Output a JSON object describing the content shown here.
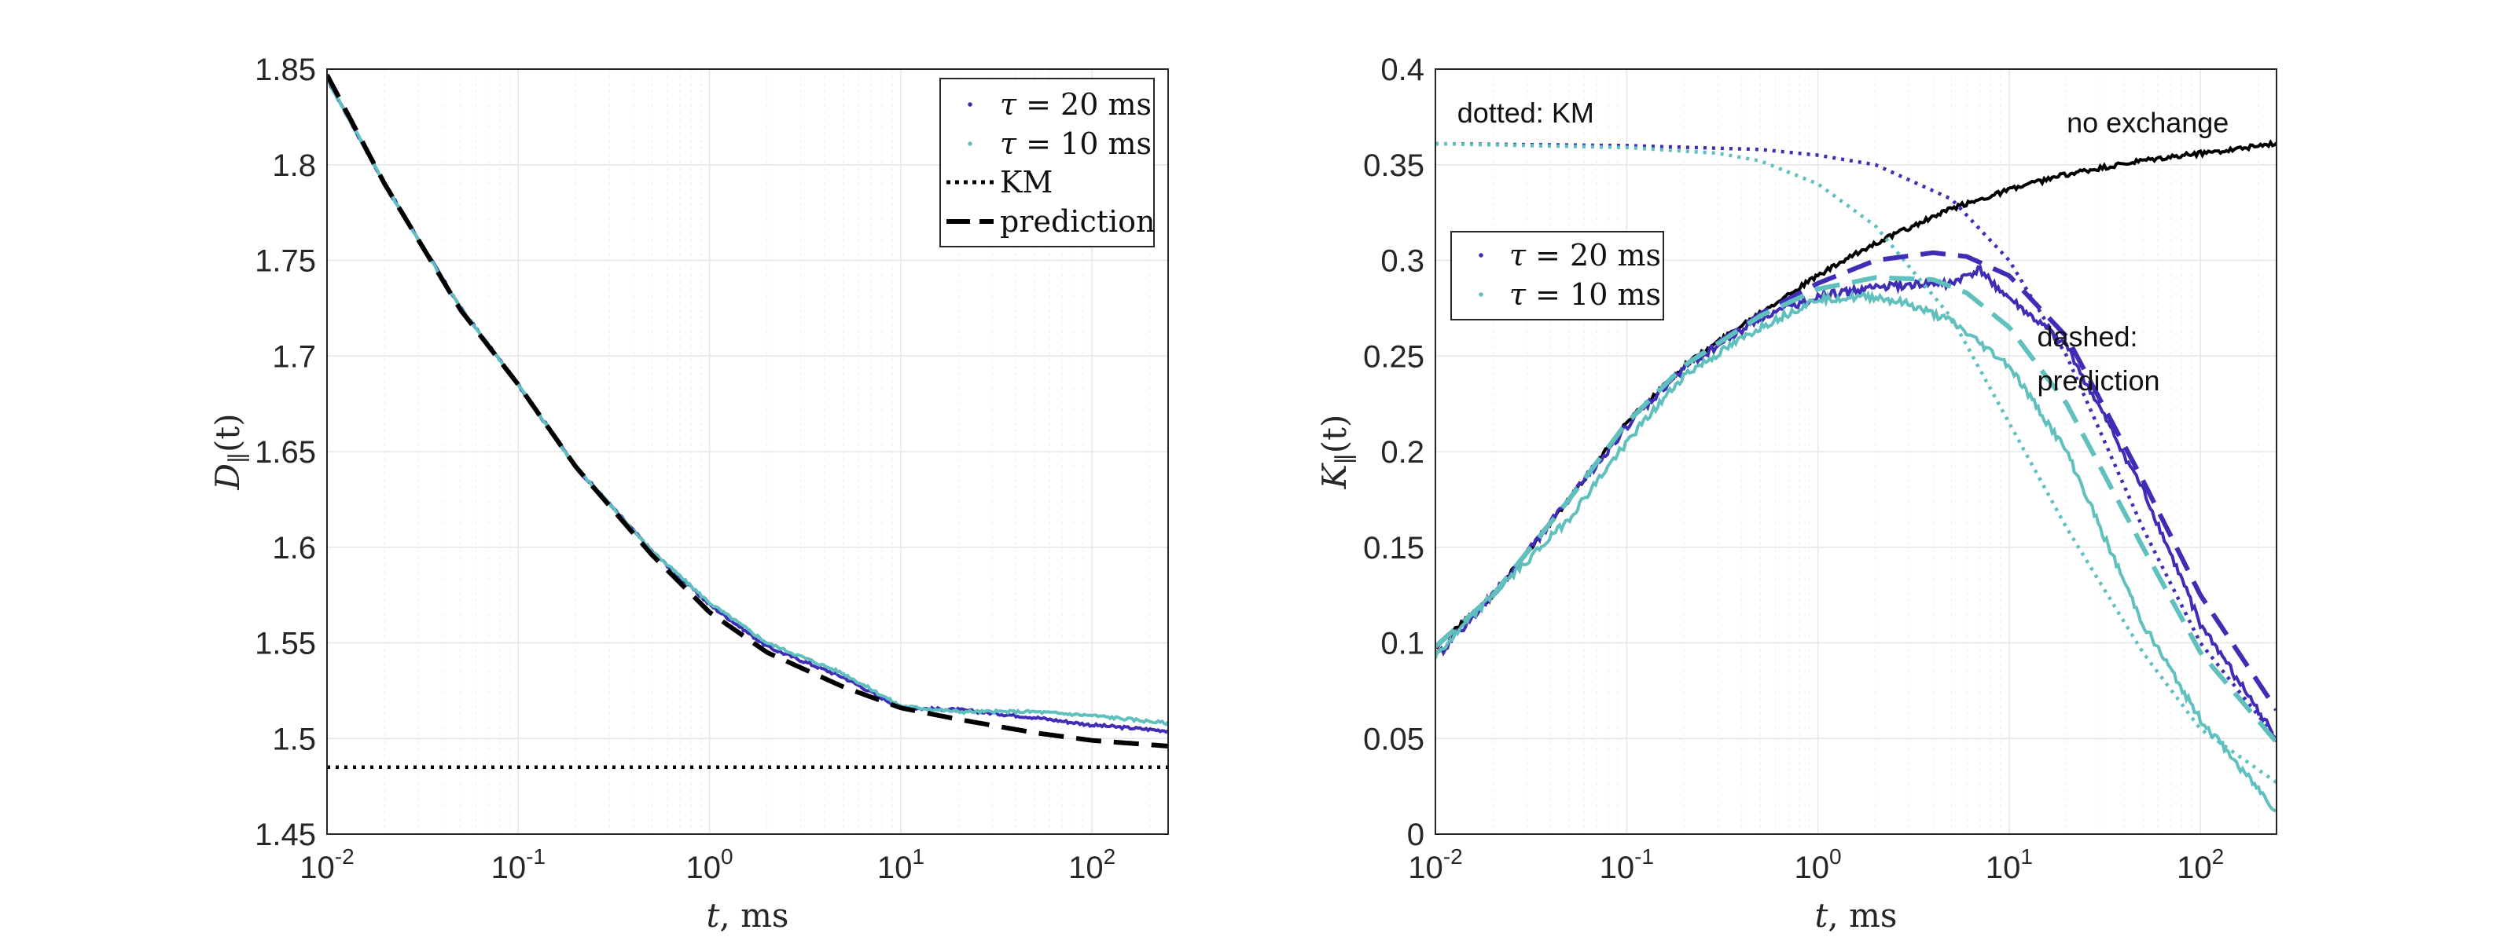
{
  "colors": {
    "tau20": "#3f2db5",
    "tau10": "#5fc0bd",
    "black": "#000000",
    "axis": "#262626"
  },
  "chart_data": [
    {
      "type": "line",
      "panel": "left",
      "xscale": "log",
      "xlim": [
        0.01,
        250
      ],
      "ylim": [
        1.45,
        1.85
      ],
      "xlabel_var": "t",
      "xlabel_unit": ", ms",
      "ylabel_base": "D",
      "ylabel_sub": "∥",
      "ylabel_arg": "(t)",
      "xticks": [
        {
          "base": "10",
          "exp": "-2",
          "value": 0.01
        },
        {
          "base": "10",
          "exp": "-1",
          "value": 0.1
        },
        {
          "base": "10",
          "exp": "0",
          "value": 1
        },
        {
          "base": "10",
          "exp": "1",
          "value": 10
        },
        {
          "base": "10",
          "exp": "2",
          "value": 100
        }
      ],
      "yticks": [
        {
          "label": "1.45",
          "value": 1.45
        },
        {
          "label": "1.5",
          "value": 1.5
        },
        {
          "label": "1.55",
          "value": 1.55
        },
        {
          "label": "1.6",
          "value": 1.6
        },
        {
          "label": "1.65",
          "value": 1.65
        },
        {
          "label": "1.7",
          "value": 1.7
        },
        {
          "label": "1.75",
          "value": 1.75
        },
        {
          "label": "1.8",
          "value": 1.8
        },
        {
          "label": "1.85",
          "value": 1.85
        }
      ],
      "legend": {
        "placement": "top-right",
        "entries": [
          {
            "math": "τ",
            "text": " = 20 ms",
            "style": "dot",
            "color": "#3f2db5"
          },
          {
            "math": "τ",
            "text": " = 10 ms",
            "style": "dot",
            "color": "#5fc0bd"
          },
          {
            "math": "",
            "text": "KM",
            "style": "dotted",
            "color": "#000000"
          },
          {
            "math": "",
            "text": "prediction",
            "style": "dashed",
            "color": "#000000"
          }
        ]
      },
      "series": [
        {
          "name": "τ = 20 ms",
          "style": "solid",
          "color": "#3f2db5",
          "x": [
            0.01,
            0.02,
            0.05,
            0.1,
            0.2,
            0.5,
            1,
            2,
            5,
            10,
            20,
            50,
            100,
            250
          ],
          "y": [
            1.845,
            1.79,
            1.725,
            1.685,
            1.642,
            1.598,
            1.57,
            1.548,
            1.532,
            1.516,
            1.515,
            1.511,
            1.507,
            1.504
          ]
        },
        {
          "name": "τ = 10 ms",
          "style": "solid",
          "color": "#5fc0bd",
          "x": [
            0.01,
            0.02,
            0.05,
            0.1,
            0.2,
            0.5,
            1,
            2,
            5,
            10,
            20,
            50,
            100,
            250
          ],
          "y": [
            1.845,
            1.79,
            1.725,
            1.685,
            1.642,
            1.598,
            1.571,
            1.55,
            1.534,
            1.517,
            1.514,
            1.514,
            1.512,
            1.508
          ]
        },
        {
          "name": "prediction",
          "style": "dashed",
          "color": "#000000",
          "x": [
            0.01,
            0.02,
            0.05,
            0.1,
            0.2,
            0.5,
            1,
            2,
            5,
            10,
            20,
            50,
            100,
            250
          ],
          "y": [
            1.847,
            1.79,
            1.724,
            1.685,
            1.642,
            1.596,
            1.566,
            1.545,
            1.527,
            1.516,
            1.51,
            1.503,
            1.499,
            1.496
          ]
        },
        {
          "name": "KM",
          "style": "dotted",
          "color": "#000000",
          "x": [
            0.01,
            250
          ],
          "y": [
            1.485,
            1.485
          ]
        }
      ]
    },
    {
      "type": "line",
      "panel": "right",
      "xscale": "log",
      "xlim": [
        0.01,
        250
      ],
      "ylim": [
        0,
        0.4
      ],
      "xlabel_var": "t",
      "xlabel_unit": ", ms",
      "ylabel_base": "K",
      "ylabel_sub": "∥",
      "ylabel_arg": "(t)",
      "xticks": [
        {
          "base": "10",
          "exp": "-2",
          "value": 0.01
        },
        {
          "base": "10",
          "exp": "-1",
          "value": 0.1
        },
        {
          "base": "10",
          "exp": "0",
          "value": 1
        },
        {
          "base": "10",
          "exp": "1",
          "value": 10
        },
        {
          "base": "10",
          "exp": "2",
          "value": 100
        }
      ],
      "yticks": [
        {
          "label": "0",
          "value": 0
        },
        {
          "label": "0.05",
          "value": 0.05
        },
        {
          "label": "0.1",
          "value": 0.1
        },
        {
          "label": "0.15",
          "value": 0.15
        },
        {
          "label": "0.2",
          "value": 0.2
        },
        {
          "label": "0.25",
          "value": 0.25
        },
        {
          "label": "0.3",
          "value": 0.3
        },
        {
          "label": "0.35",
          "value": 0.35
        },
        {
          "label": "0.4",
          "value": 0.4
        }
      ],
      "legend": {
        "placement": "upper-left",
        "entries": [
          {
            "math": "τ",
            "text": " = 20 ms",
            "style": "dot",
            "color": "#3f2db5"
          },
          {
            "math": "τ",
            "text": " = 10 ms",
            "style": "dot",
            "color": "#5fc0bd"
          }
        ]
      },
      "annotations": [
        {
          "text": "dotted: KM",
          "x": 0.013,
          "y": 0.372
        },
        {
          "text": "no exchange",
          "x": 20,
          "y": 0.367
        },
        {
          "text": "dashed:",
          "x": 14,
          "y": 0.255
        },
        {
          "text": "prediction",
          "x": 14,
          "y": 0.232
        }
      ],
      "series": [
        {
          "name": "no exchange",
          "style": "solid",
          "color": "#000000",
          "x": [
            0.01,
            0.02,
            0.05,
            0.1,
            0.2,
            0.5,
            1,
            2,
            5,
            10,
            20,
            50,
            100,
            250
          ],
          "y": [
            0.098,
            0.125,
            0.175,
            0.215,
            0.245,
            0.273,
            0.292,
            0.309,
            0.327,
            0.337,
            0.345,
            0.352,
            0.356,
            0.361
          ]
        },
        {
          "name": "τ = 20 ms",
          "style": "solid",
          "color": "#3f2db5",
          "x": [
            0.01,
            0.02,
            0.05,
            0.1,
            0.2,
            0.5,
            1,
            2,
            5,
            7,
            10,
            20,
            50,
            100,
            250
          ],
          "y": [
            0.092,
            0.125,
            0.175,
            0.213,
            0.244,
            0.27,
            0.281,
            0.286,
            0.288,
            0.295,
            0.28,
            0.255,
            0.18,
            0.11,
            0.05
          ]
        },
        {
          "name": "τ = 10 ms",
          "style": "solid",
          "color": "#5fc0bd",
          "x": [
            0.01,
            0.02,
            0.05,
            0.1,
            0.2,
            0.5,
            1,
            2,
            3,
            5,
            10,
            20,
            50,
            100,
            250
          ],
          "y": [
            0.093,
            0.125,
            0.165,
            0.205,
            0.24,
            0.265,
            0.28,
            0.281,
            0.277,
            0.268,
            0.245,
            0.2,
            0.11,
            0.06,
            0.012
          ]
        },
        {
          "name": "KM τ = 20 ms",
          "style": "dotted",
          "color": "#3f2db5",
          "x": [
            0.01,
            0.1,
            0.5,
            1,
            2,
            5,
            10,
            20,
            50,
            100,
            250
          ],
          "y": [
            0.361,
            0.36,
            0.358,
            0.355,
            0.35,
            0.332,
            0.3,
            0.25,
            0.16,
            0.1,
            0.05
          ]
        },
        {
          "name": "KM τ = 10 ms",
          "style": "dotted",
          "color": "#5fc0bd",
          "x": [
            0.01,
            0.1,
            0.3,
            0.5,
            1,
            2,
            5,
            10,
            20,
            50,
            100,
            250
          ],
          "y": [
            0.361,
            0.359,
            0.356,
            0.352,
            0.34,
            0.318,
            0.27,
            0.215,
            0.16,
            0.095,
            0.055,
            0.027
          ]
        },
        {
          "name": "prediction τ = 20 ms",
          "style": "dashed",
          "color": "#3f2db5",
          "x": [
            0.01,
            0.02,
            0.05,
            0.1,
            0.2,
            0.5,
            1,
            2,
            4,
            6,
            10,
            20,
            50,
            100,
            250
          ],
          "y": [
            0.098,
            0.125,
            0.175,
            0.215,
            0.245,
            0.272,
            0.288,
            0.3,
            0.304,
            0.302,
            0.292,
            0.26,
            0.185,
            0.125,
            0.065
          ]
        },
        {
          "name": "prediction τ = 10 ms",
          "style": "dashed",
          "color": "#5fc0bd",
          "x": [
            0.01,
            0.02,
            0.05,
            0.1,
            0.2,
            0.5,
            1,
            2,
            4,
            6,
            10,
            20,
            50,
            100,
            250
          ],
          "y": [
            0.098,
            0.125,
            0.175,
            0.215,
            0.245,
            0.271,
            0.285,
            0.291,
            0.29,
            0.283,
            0.265,
            0.225,
            0.15,
            0.095,
            0.048
          ]
        }
      ]
    }
  ]
}
